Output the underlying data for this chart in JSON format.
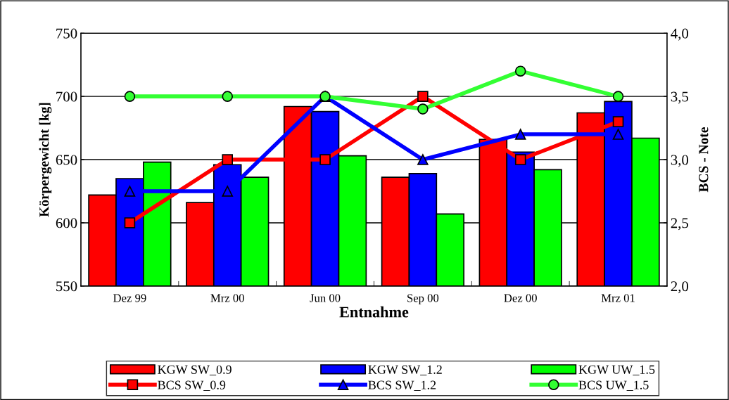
{
  "chart_data": {
    "type": "bar",
    "xlabel": "Entnahme",
    "ylabel": "Körpergewicht [kg]",
    "y2label": "BCS - Note",
    "categories": [
      "Dez 99",
      "Mrz 00",
      "Jun 00",
      "Sep 00",
      "Dez 00",
      "Mrz 01"
    ],
    "series": [
      {
        "name": "KGW SW_0.9",
        "color": "#ff0000",
        "values": [
          622,
          616,
          692,
          636,
          666,
          687
        ]
      },
      {
        "name": "KGW SW_1.2",
        "color": "#0000ff",
        "values": [
          635,
          646,
          688,
          639,
          656,
          696
        ]
      },
      {
        "name": "KGW UW_1.5",
        "color": "#00ff00",
        "values": [
          648,
          636,
          653,
          607,
          642,
          667
        ]
      },
      {
        "name": "BCS SW_0.9",
        "type": "line",
        "axis": "y2",
        "marker": "square",
        "color": "#ff0000",
        "values": [
          2.5,
          3.0,
          3.0,
          3.5,
          3.0,
          3.3
        ]
      },
      {
        "name": "BCS SW_1.2",
        "type": "line",
        "axis": "y2",
        "marker": "triangle",
        "color": "#0000ff",
        "values": [
          2.75,
          2.75,
          3.5,
          3.0,
          3.2,
          3.2
        ]
      },
      {
        "name": "BCS UW_1.5",
        "type": "line",
        "axis": "y2",
        "marker": "circle",
        "color": "#33ff33",
        "values": [
          3.5,
          3.5,
          3.5,
          3.4,
          3.7,
          3.5
        ]
      }
    ],
    "ylim": [
      550,
      750
    ],
    "yticks": [
      550,
      600,
      650,
      700,
      750
    ],
    "y2lim": [
      2.0,
      4.0
    ],
    "y2ticks": [
      {
        "value": 2.0,
        "label": "2,0"
      },
      {
        "value": 2.5,
        "label": "2,5"
      },
      {
        "value": 3.0,
        "label": "3,0"
      },
      {
        "value": 3.5,
        "label": "3,5"
      },
      {
        "value": 4.0,
        "label": "4,0"
      }
    ],
    "grid": "y",
    "legend": "bottom"
  }
}
